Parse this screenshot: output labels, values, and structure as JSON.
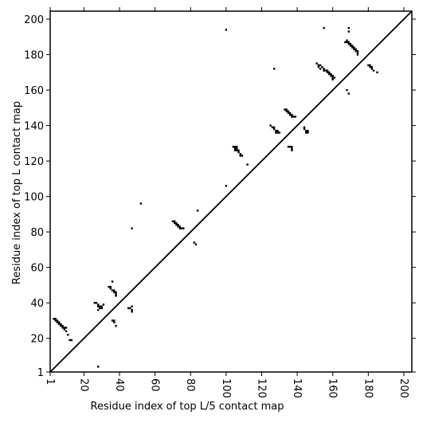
{
  "chart_data": {
    "type": "scatter",
    "xlabel": "Residue index of top L/5 contact map",
    "ylabel": "Residue index of top L contact map",
    "x": [
      3,
      4,
      4,
      5,
      5,
      6,
      6,
      7,
      7,
      8,
      8,
      9,
      9,
      10,
      10,
      11,
      12,
      13,
      28,
      26,
      27,
      28,
      28,
      29,
      29,
      30,
      30,
      31,
      28,
      34,
      35,
      35,
      36,
      37,
      37,
      38,
      38,
      38,
      36,
      36,
      37,
      37,
      38,
      45,
      46,
      47,
      47,
      47,
      47,
      52,
      70,
      71,
      71,
      72,
      72,
      73,
      73,
      74,
      74,
      75,
      76,
      82,
      83,
      84,
      100,
      100,
      104,
      105,
      106,
      105,
      106,
      105,
      106,
      107,
      107,
      108,
      108,
      109,
      112,
      127,
      125,
      126,
      127,
      127,
      128,
      128,
      129,
      129,
      130,
      133,
      134,
      134,
      135,
      135,
      136,
      136,
      137,
      137,
      138,
      139,
      135,
      136,
      137,
      137,
      137,
      144,
      144,
      145,
      145,
      146,
      146,
      155,
      151,
      152,
      152,
      153,
      153,
      154,
      155,
      155,
      156,
      157,
      157,
      158,
      158,
      159,
      159,
      160,
      160,
      161,
      160,
      167,
      168,
      169,
      169,
      170,
      170,
      171,
      171,
      172,
      172,
      173,
      173,
      174,
      174,
      174,
      168,
      169,
      169,
      168,
      169,
      180,
      181,
      181,
      182,
      182,
      183,
      185
    ],
    "y": [
      31,
      31,
      30,
      30,
      29,
      29,
      28,
      28,
      27,
      27,
      26,
      26,
      25,
      26,
      24,
      22,
      19,
      19,
      4,
      40,
      40,
      39,
      38,
      38,
      37,
      37,
      38,
      39,
      36,
      49,
      49,
      48,
      47,
      47,
      46,
      46,
      45,
      44,
      52,
      30,
      30,
      29,
      27,
      37,
      37,
      36,
      35,
      38,
      82,
      96,
      86,
      86,
      85,
      85,
      84,
      84,
      83,
      83,
      82,
      82,
      82,
      74,
      73,
      92,
      106,
      194,
      128,
      128,
      128,
      127,
      127,
      126,
      126,
      126,
      125,
      124,
      123,
      123,
      118,
      172,
      140,
      139,
      139,
      138,
      137,
      136,
      136,
      137,
      136,
      149,
      149,
      148,
      148,
      147,
      147,
      146,
      146,
      145,
      145,
      145,
      128,
      128,
      128,
      127,
      126,
      139,
      138,
      137,
      136,
      136,
      137,
      195,
      175,
      174,
      173,
      174,
      172,
      173,
      172,
      171,
      171,
      171,
      170,
      170,
      169,
      169,
      168,
      168,
      167,
      167,
      166,
      187,
      188,
      187,
      186,
      186,
      185,
      185,
      184,
      184,
      183,
      183,
      182,
      182,
      181,
      180,
      187,
      195,
      193,
      160,
      158,
      174,
      174,
      173,
      173,
      172,
      171,
      170
    ],
    "color": "#000000",
    "diagonal": true,
    "xlim": [
      1,
      204.5
    ],
    "ylim": [
      1,
      204.5
    ],
    "xticks": [
      1,
      20,
      40,
      60,
      80,
      100,
      120,
      140,
      160,
      180,
      200
    ],
    "yticks": [
      1,
      20,
      40,
      60,
      80,
      100,
      120,
      140,
      160,
      180,
      200
    ]
  }
}
